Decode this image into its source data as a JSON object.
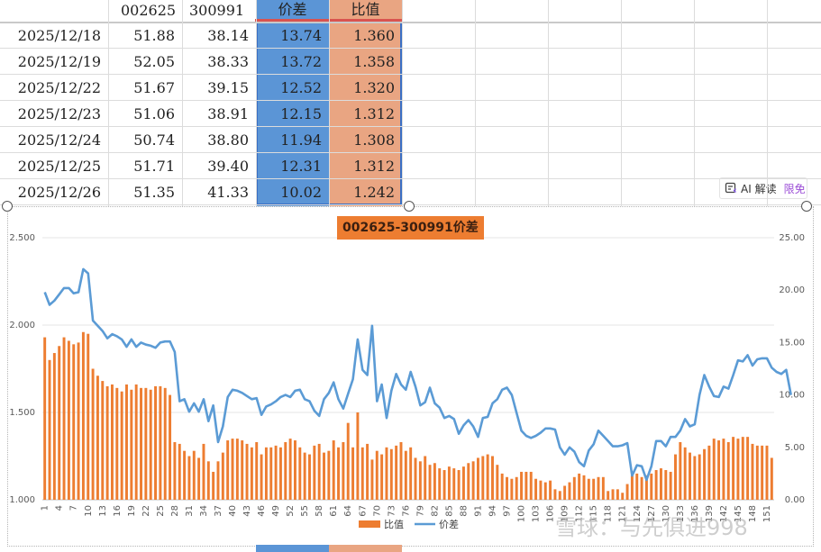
{
  "sheet": {
    "headers": [
      "",
      "002625",
      "300991",
      "价差",
      "比值"
    ],
    "rows": [
      {
        "date": "2025/12/18",
        "a": "51.88",
        "b": "38.14",
        "diff": "13.74",
        "ratio": "1.360"
      },
      {
        "date": "2025/12/19",
        "a": "52.05",
        "b": "38.33",
        "diff": "13.72",
        "ratio": "1.358"
      },
      {
        "date": "2025/12/22",
        "a": "51.67",
        "b": "39.15",
        "diff": "12.52",
        "ratio": "1.320"
      },
      {
        "date": "2025/12/23",
        "a": "51.06",
        "b": "38.91",
        "diff": "12.15",
        "ratio": "1.312"
      },
      {
        "date": "2025/12/24",
        "a": "50.74",
        "b": "38.80",
        "diff": "11.94",
        "ratio": "1.308"
      },
      {
        "date": "2025/12/25",
        "a": "51.71",
        "b": "39.40",
        "diff": "12.31",
        "ratio": "1.312"
      },
      {
        "date": "2025/12/26",
        "a": "51.35",
        "b": "41.33",
        "diff": "10.02",
        "ratio": "1.242"
      }
    ]
  },
  "ai_badge": {
    "icon": "ai-read-icon",
    "label": "AI 解读",
    "free": "限免"
  },
  "watermark": "雪球：与先俱进998",
  "colors": {
    "diff_col": "#5b95d6",
    "ratio_col": "#e9a582",
    "bar": "#ed7d31",
    "line": "#5b9bd5"
  },
  "chart_data": {
    "type": "bar+line",
    "title": "002625-300991价差",
    "legend": [
      "比值",
      "价差"
    ],
    "legend_position": "bottom",
    "left_axis": {
      "min": 1.0,
      "max": 2.5,
      "ticks": [
        "1.000",
        "1.500",
        "2.000",
        "2.500"
      ]
    },
    "right_axis": {
      "min": 0,
      "max": 25,
      "ticks": [
        "0.00",
        "5.00",
        "10.00",
        "15.00",
        "20.00",
        "25.00"
      ]
    },
    "x_tick_labels": [
      "1",
      "4",
      "7",
      "10",
      "13",
      "16",
      "19",
      "22",
      "25",
      "28",
      "31",
      "34",
      "37",
      "40",
      "43",
      "46",
      "49",
      "52",
      "55",
      "58",
      "61",
      "64",
      "67",
      "70",
      "73",
      "76",
      "79",
      "82",
      "85",
      "88",
      "91",
      "94",
      "97",
      "100",
      "103",
      "106",
      "109",
      "112",
      "115",
      "118",
      "121",
      "124",
      "127",
      "130",
      "133",
      "136",
      "139",
      "142",
      "145",
      "148",
      "151"
    ],
    "series": [
      {
        "name": "比值",
        "type": "bar",
        "axis": "left",
        "values": [
          1.93,
          1.8,
          1.84,
          1.88,
          1.93,
          1.91,
          1.89,
          1.9,
          1.96,
          1.95,
          1.75,
          1.71,
          1.68,
          1.65,
          1.66,
          1.64,
          1.62,
          1.66,
          1.63,
          1.66,
          1.64,
          1.64,
          1.63,
          1.65,
          1.65,
          1.64,
          1.6,
          1.33,
          1.32,
          1.28,
          1.25,
          1.28,
          1.24,
          1.32,
          1.22,
          1.16,
          1.22,
          1.27,
          1.34,
          1.35,
          1.35,
          1.34,
          1.32,
          1.3,
          1.33,
          1.26,
          1.3,
          1.3,
          1.31,
          1.3,
          1.33,
          1.35,
          1.34,
          1.3,
          1.27,
          1.26,
          1.31,
          1.32,
          1.27,
          1.28,
          1.34,
          1.3,
          1.33,
          1.44,
          1.3,
          1.5,
          1.3,
          1.32,
          1.23,
          1.28,
          1.26,
          1.3,
          1.29,
          1.31,
          1.33,
          1.28,
          1.3,
          1.24,
          1.22,
          1.25,
          1.2,
          1.21,
          1.18,
          1.17,
          1.19,
          1.18,
          1.17,
          1.19,
          1.21,
          1.22,
          1.24,
          1.25,
          1.26,
          1.25,
          1.2,
          1.15,
          1.13,
          1.12,
          1.13,
          1.16,
          1.16,
          1.16,
          1.12,
          1.11,
          1.1,
          1.11,
          1.06,
          1.05,
          1.08,
          1.1,
          1.13,
          1.15,
          1.14,
          1.12,
          1.12,
          1.13,
          1.13,
          1.05,
          1.06,
          1.06,
          1.04,
          1.09,
          1.14,
          1.15,
          1.13,
          1.14,
          1.15,
          1.17,
          1.18,
          1.17,
          1.16,
          1.26,
          1.33,
          1.3,
          1.27,
          1.25,
          1.26,
          1.29,
          1.31,
          1.35,
          1.34,
          1.35,
          1.33,
          1.36,
          1.35,
          1.36,
          1.36,
          1.32,
          1.31,
          1.31,
          1.31,
          1.24
        ]
      },
      {
        "name": "价差",
        "type": "line",
        "axis": "right",
        "values": [
          19.8,
          18.6,
          19.0,
          19.6,
          20.2,
          20.2,
          19.7,
          19.8,
          22.0,
          21.6,
          17.1,
          16.6,
          16.1,
          15.4,
          15.8,
          15.6,
          15.3,
          14.6,
          15.3,
          14.6,
          15.0,
          14.8,
          14.7,
          14.5,
          15.0,
          15.1,
          15.1,
          14.1,
          9.4,
          9.6,
          8.4,
          9.2,
          8.4,
          9.6,
          7.5,
          9.0,
          5.5,
          7.0,
          9.8,
          10.5,
          10.4,
          10.2,
          9.9,
          9.6,
          9.7,
          8.1,
          8.9,
          9.1,
          9.4,
          9.8,
          10.0,
          9.8,
          10.4,
          10.5,
          9.6,
          9.4,
          8.5,
          8.0,
          9.6,
          10.2,
          11.2,
          9.6,
          8.7,
          10.1,
          11.5,
          15.3,
          12.4,
          11.9,
          16.6,
          9.4,
          11.0,
          7.8,
          10.4,
          12.0,
          11.0,
          10.5,
          12.2,
          10.8,
          9.0,
          9.3,
          10.7,
          9.2,
          8.8,
          7.8,
          8.0,
          7.7,
          6.3,
          7.1,
          7.6,
          7.0,
          6.0,
          7.8,
          7.9,
          9.2,
          9.6,
          10.5,
          10.7,
          10.0,
          8.3,
          6.6,
          6.1,
          5.9,
          6.1,
          6.4,
          6.8,
          6.8,
          6.7,
          5.0,
          4.3,
          5.0,
          4.6,
          3.6,
          3.2,
          4.7,
          5.3,
          6.6,
          6.1,
          5.6,
          5.1,
          5.1,
          5.2,
          5.4,
          2.3,
          3.3,
          3.2,
          1.9,
          3.2,
          5.6,
          5.6,
          5.1,
          6.0,
          6.0,
          6.6,
          7.7,
          7.0,
          7.2,
          10.0,
          11.9,
          10.8,
          9.9,
          9.8,
          10.8,
          10.6,
          11.9,
          13.3,
          13.2,
          13.8,
          12.8,
          13.4,
          13.5,
          13.5,
          12.6,
          12.2,
          12.0,
          12.4,
          10.0
        ]
      }
    ]
  }
}
